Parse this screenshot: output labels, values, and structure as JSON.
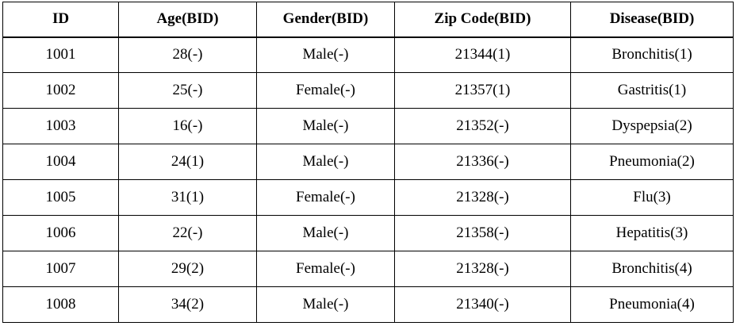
{
  "table": {
    "headers": [
      "ID",
      "Age(BID)",
      "Gender(BID)",
      "Zip Code(BID)",
      "Disease(BID)"
    ],
    "rows": [
      [
        "1001",
        "28(-)",
        "Male(-)",
        "21344(1)",
        "Bronchitis(1)"
      ],
      [
        "1002",
        "25(-)",
        "Female(-)",
        "21357(1)",
        "Gastritis(1)"
      ],
      [
        "1003",
        "16(-)",
        "Male(-)",
        "21352(-)",
        "Dyspepsia(2)"
      ],
      [
        "1004",
        "24(1)",
        "Male(-)",
        "21336(-)",
        "Pneumonia(2)"
      ],
      [
        "1005",
        "31(1)",
        "Female(-)",
        "21328(-)",
        "Flu(3)"
      ],
      [
        "1006",
        "22(-)",
        "Male(-)",
        "21358(-)",
        "Hepatitis(3)"
      ],
      [
        "1007",
        "29(2)",
        "Female(-)",
        "21328(-)",
        "Bronchitis(4)"
      ],
      [
        "1008",
        "34(2)",
        "Male(-)",
        "21340(-)",
        "Pneumonia(4)"
      ]
    ]
  }
}
